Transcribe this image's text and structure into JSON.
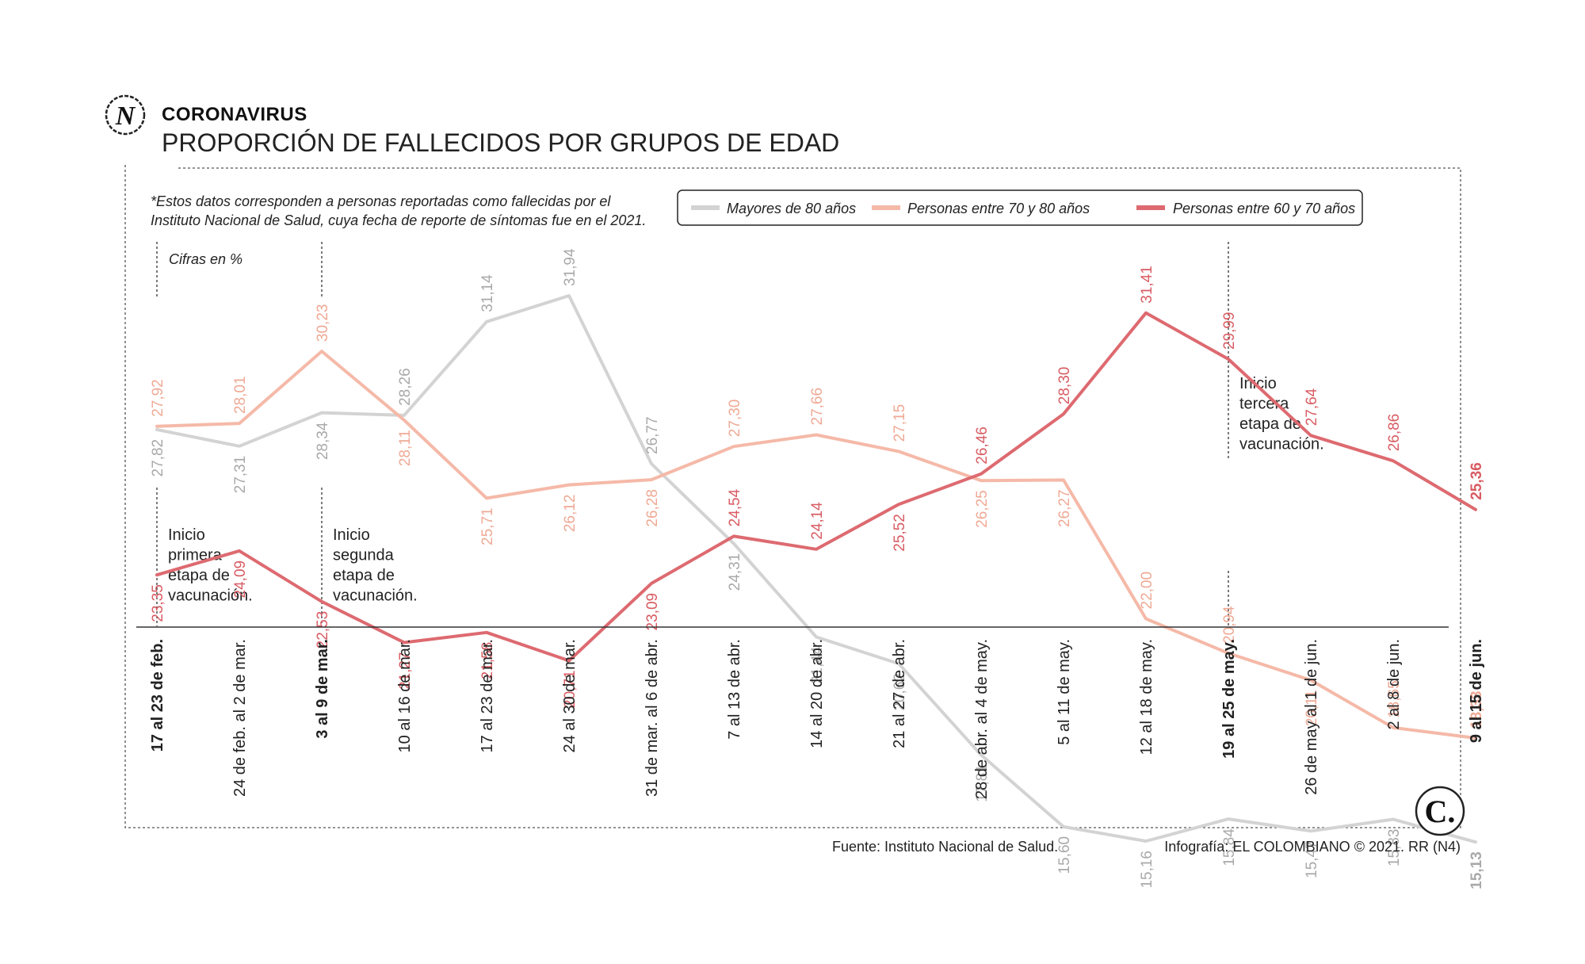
{
  "header": {
    "kicker": "CORONAVIRUS",
    "title": "PROPORCIÓN DE FALLECIDOS POR GRUPOS DE EDAD",
    "logo_letter": "N"
  },
  "note": {
    "line1": "*Estos datos corresponden a personas reportadas como fallecidas por el",
    "line2": "Instituto Nacional de Salud, cuya fecha de reporte de síntomas fue en el 2021."
  },
  "unit_label": "Cifras en %",
  "annotations": [
    {
      "index": 0,
      "lines": [
        "Inicio",
        "primera",
        "etapa de",
        "vacunación."
      ]
    },
    {
      "index": 2,
      "lines": [
        "Inicio",
        "segunda",
        "etapa de",
        "vacunación."
      ]
    },
    {
      "index": 13,
      "lines": [
        "Inicio",
        "tercera",
        "etapa de",
        "vacunación."
      ]
    }
  ],
  "footer": {
    "source": "Fuente: Instituto Nacional de Salud.",
    "credit": "Infografía: EL COLOMBIANO © 2021. RR (N4)",
    "brand_letter": "C."
  },
  "colors": {
    "mayores80": "#d3d3d3",
    "mayores80_label": "#a9a9a9",
    "entre70y80": "#f5b9a8",
    "entre70y80_label": "#efa995",
    "entre60y70": "#dd6a70",
    "entre60y70_label": "#d85c63"
  },
  "chart_data": {
    "type": "line",
    "title": "PROPORCIÓN DE FALLECIDOS POR GRUPOS DE EDAD",
    "ylabel": "Cifras en %",
    "ylim": [
      13,
      34
    ],
    "grid": false,
    "legend_position": "top-right",
    "categories": [
      "17 al 23 de feb.",
      "24 de feb. al 2 de mar.",
      "3 al 9 de mar.",
      "10 al 16 de mar.",
      "17 al 23 de mar.",
      "24 al 30 de mar.",
      "31 de mar. al 6 de abr.",
      "7 al 13 de abr.",
      "14 al 20 de abr.",
      "21 al 27 de abr.",
      "28 de abr. al 4 de may.",
      "5 al 11 de may.",
      "12 al 18 de may.",
      "19 al 25 de may.",
      "26 de may al 1 de jun.",
      "2 al 8 de jun.",
      "9 al 15 de jun."
    ],
    "bold_categories": [
      0,
      2,
      13,
      16
    ],
    "series": [
      {
        "key": "mayores80",
        "name": "Mayores de 80 años",
        "values": [
          27.82,
          27.31,
          28.34,
          28.26,
          31.14,
          31.94,
          26.77,
          24.31,
          21.44,
          20.62,
          17.81,
          15.6,
          15.16,
          15.84,
          15.47,
          15.83,
          15.13
        ],
        "labels": [
          "27,82",
          "27,31",
          "28,34",
          "28,26",
          "31,14",
          "31,94",
          "26,77",
          "24,31",
          "21,44",
          "20,62",
          "17,81",
          "15,60",
          "15,16",
          "15,84",
          "15,47",
          "15,83",
          "15,13"
        ],
        "label_side": [
          "below",
          "below",
          "below",
          "above",
          "above",
          "above",
          "above",
          "below",
          "below",
          "below",
          "below",
          "below",
          "below",
          "below",
          "below",
          "below",
          "below"
        ]
      },
      {
        "key": "entre70y80",
        "name": "Personas entre 70 y 80 años",
        "values": [
          27.92,
          28.01,
          30.23,
          28.11,
          25.71,
          26.12,
          26.28,
          27.3,
          27.66,
          27.15,
          26.25,
          26.27,
          22.0,
          20.94,
          20.11,
          18.65,
          18.33
        ],
        "labels": [
          "27,92",
          "28,01",
          "30,23",
          "28,11",
          "25,71",
          "26,12",
          "26,28",
          "27,30",
          "27,66",
          "27,15",
          "26,25",
          "26,27",
          "22,00",
          "20,94",
          "20,11",
          "18,65",
          "18,33"
        ],
        "label_side": [
          "above",
          "above",
          "above",
          "below",
          "below",
          "below",
          "below",
          "above",
          "above",
          "above",
          "below",
          "below",
          "above",
          "above",
          "below",
          "above",
          "above"
        ]
      },
      {
        "key": "entre60y70",
        "name": "Personas entre 60 y 70 años",
        "values": [
          23.35,
          24.09,
          22.53,
          21.27,
          21.58,
          20.71,
          23.09,
          24.54,
          24.14,
          25.52,
          26.46,
          28.3,
          31.41,
          29.99,
          27.64,
          26.86,
          25.36
        ],
        "labels": [
          "23,35",
          "24,09",
          "22,53",
          "21,27",
          "21,58",
          "20,71",
          "23,09",
          "24,54",
          "24,14",
          "25,52",
          "26,46",
          "28,30",
          "31,41",
          "29,99",
          "27,64",
          "26,86",
          "25,36"
        ],
        "label_side": [
          "below",
          "below",
          "below",
          "below",
          "below",
          "below",
          "below",
          "above",
          "above",
          "below",
          "above",
          "above",
          "above",
          "above",
          "above",
          "above",
          "above"
        ]
      }
    ]
  }
}
